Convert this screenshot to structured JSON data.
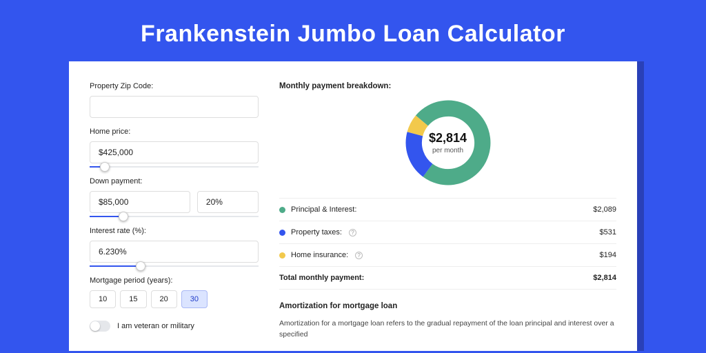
{
  "title": "Frankenstein Jumbo Loan Calculator",
  "form": {
    "zip": {
      "label": "Property Zip Code:",
      "value": ""
    },
    "home": {
      "label": "Home price:",
      "value": "$425,000",
      "slider_pct": 9
    },
    "down": {
      "label": "Down payment:",
      "value": "$85,000",
      "pct_value": "20%",
      "slider_pct": 20
    },
    "rate": {
      "label": "Interest rate (%):",
      "value": "6.230%",
      "slider_pct": 30
    },
    "period": {
      "label": "Mortgage period (years):",
      "options": [
        "10",
        "15",
        "20",
        "30"
      ],
      "active_index": 3
    },
    "veteran": {
      "label": "I am veteran or military",
      "on": false
    }
  },
  "breakdown": {
    "title": "Monthly payment breakdown:",
    "center_value": "$2,814",
    "center_sub": "per month",
    "items": [
      {
        "label": "Principal & Interest:",
        "value": "$2,089",
        "color": "#4eab89",
        "info": false,
        "pct": 74
      },
      {
        "label": "Property taxes:",
        "value": "$531",
        "color": "#3355ee",
        "info": true,
        "pct": 19
      },
      {
        "label": "Home insurance:",
        "value": "$194",
        "color": "#f2c94c",
        "info": true,
        "pct": 7
      }
    ],
    "total_label": "Total monthly payment:",
    "total_value": "$2,814"
  },
  "amortization": {
    "title": "Amortization for mortgage loan",
    "text": "Amortization for a mortgage loan refers to the gradual repayment of the loan principal and interest over a specified"
  },
  "chart_style": {
    "inner_radius_pct": 62,
    "gap_deg": 0,
    "start_angle_deg": -140,
    "ring_bg": "#ffffff"
  }
}
